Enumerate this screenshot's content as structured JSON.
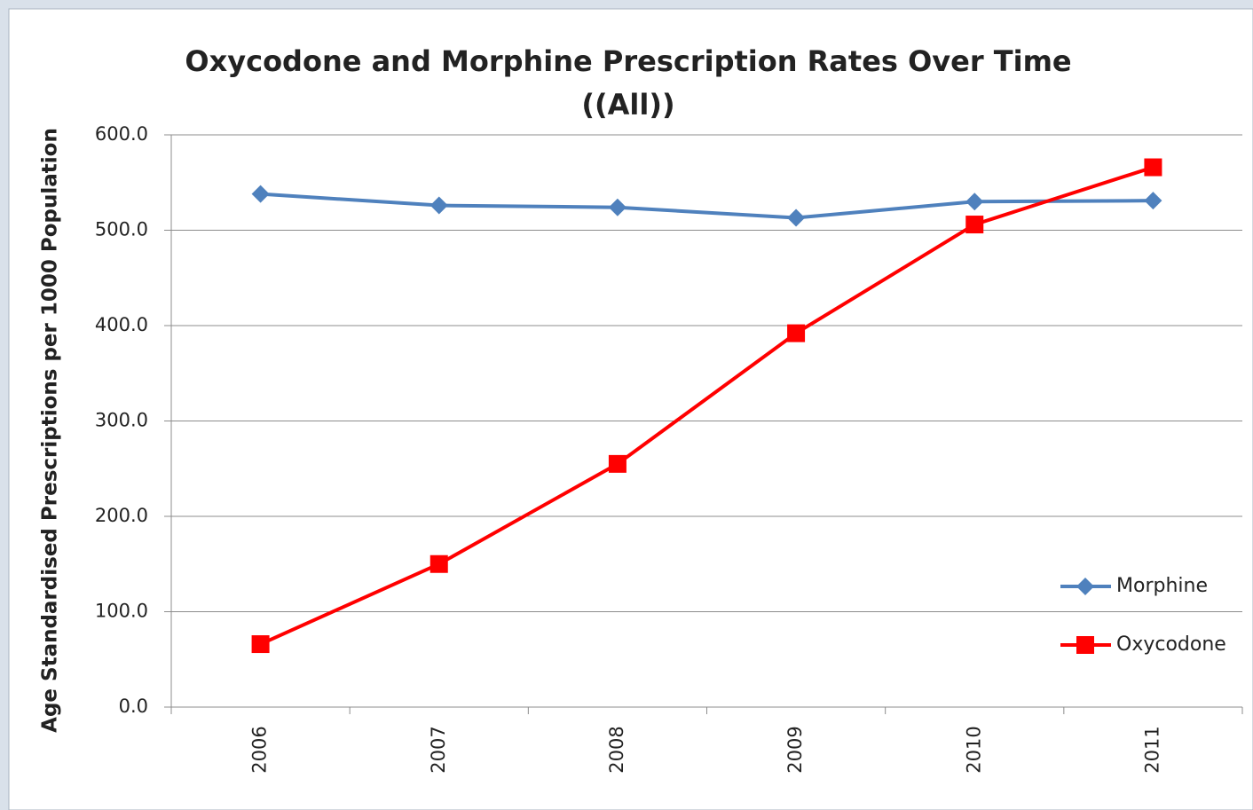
{
  "chart_data": {
    "type": "line",
    "title": "Oxycodone and Morphine Prescription Rates Over Time",
    "subtitle": "((All))",
    "y_label": "Age Standardised Prescriptions per 1000 Population",
    "categories": [
      "2006",
      "2007",
      "2008",
      "2009",
      "2010",
      "2011"
    ],
    "series": [
      {
        "name": "Morphine",
        "color": "#4f81bd",
        "marker": "diamond",
        "values": [
          538,
          526,
          524,
          513,
          530,
          531
        ]
      },
      {
        "name": "Oxycodone",
        "color": "#ff0000",
        "marker": "square",
        "values": [
          66,
          150,
          255,
          392,
          506,
          566
        ]
      }
    ],
    "ylim": [
      0,
      600
    ],
    "yticks": [
      {
        "value": 0,
        "label": "0.0"
      },
      {
        "value": 100,
        "label": "100.0"
      },
      {
        "value": 200,
        "label": "200.0"
      },
      {
        "value": 300,
        "label": "300.0"
      },
      {
        "value": 400,
        "label": "400.0"
      },
      {
        "value": 500,
        "label": "500.0"
      },
      {
        "value": 600,
        "label": "600.0"
      }
    ],
    "grid": true,
    "legend": "right"
  }
}
